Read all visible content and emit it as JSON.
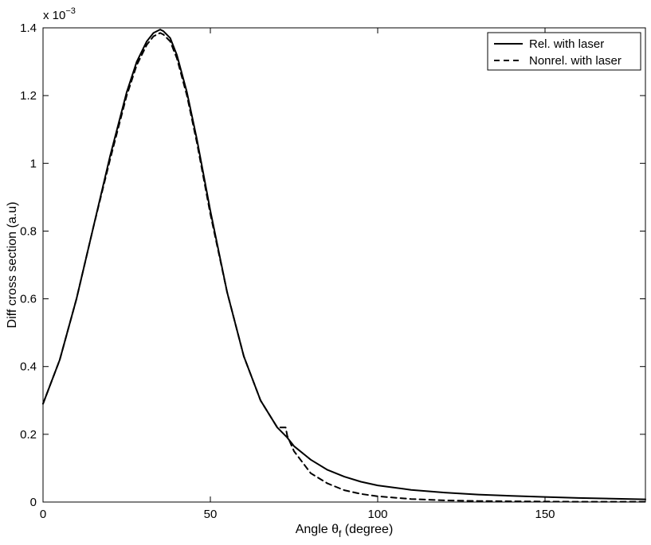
{
  "chart_data": {
    "type": "line",
    "xlabel_main": "Angle θ",
    "xlabel_sub": "f",
    "xlabel_suffix": " (degree)",
    "ylabel": "Diff cross section (a.u)",
    "y_multiplier_base": "x 10",
    "y_multiplier_exp": "−3",
    "xlim": [
      0,
      180
    ],
    "ylim": [
      0,
      1.4
    ],
    "x_ticks": [
      0,
      50,
      100,
      150
    ],
    "x_tick_labels": [
      "0",
      "50",
      "100",
      "150"
    ],
    "y_ticks": [
      0,
      0.2,
      0.4,
      0.6,
      0.8,
      1.0,
      1.2,
      1.4
    ],
    "y_tick_labels": [
      "0",
      "0.2",
      "0.4",
      "0.6",
      "0.8",
      "1",
      "1.2",
      "1.4"
    ],
    "grid": false,
    "legend_position": "top-right",
    "series": [
      {
        "name": "Rel. with laser",
        "style": "solid",
        "color": "#000000",
        "x": [
          0,
          5,
          10,
          15,
          20,
          25,
          28,
          31,
          33,
          35,
          36,
          38,
          40,
          43,
          46,
          50,
          55,
          60,
          65,
          70,
          73,
          75,
          80,
          85,
          90,
          95,
          100,
          110,
          120,
          130,
          140,
          150,
          160,
          170,
          180
        ],
        "y": [
          0.29,
          0.42,
          0.6,
          0.81,
          1.02,
          1.21,
          1.3,
          1.36,
          1.385,
          1.395,
          1.39,
          1.37,
          1.32,
          1.21,
          1.07,
          0.86,
          0.62,
          0.43,
          0.3,
          0.22,
          0.19,
          0.165,
          0.125,
          0.095,
          0.075,
          0.06,
          0.049,
          0.036,
          0.028,
          0.022,
          0.018,
          0.015,
          0.012,
          0.01,
          0.008
        ]
      },
      {
        "name": "Nonrel. with laser",
        "style": "dashed",
        "color": "#000000",
        "x": [
          0,
          5,
          10,
          15,
          20,
          25,
          28,
          31,
          33,
          35,
          36,
          38,
          40,
          43,
          46,
          50,
          55,
          60,
          65,
          70,
          72.5,
          73,
          75,
          80,
          85,
          90,
          95,
          100,
          110,
          120,
          130,
          140,
          150,
          160,
          170,
          180
        ],
        "y": [
          0.29,
          0.42,
          0.6,
          0.81,
          1.01,
          1.2,
          1.29,
          1.35,
          1.375,
          1.385,
          1.38,
          1.36,
          1.31,
          1.2,
          1.06,
          0.85,
          0.62,
          0.43,
          0.3,
          0.22,
          0.22,
          0.195,
          0.15,
          0.085,
          0.055,
          0.035,
          0.024,
          0.017,
          0.009,
          0.005,
          0.003,
          0.002,
          0.0015,
          0.001,
          0.001,
          0.001
        ]
      }
    ]
  }
}
